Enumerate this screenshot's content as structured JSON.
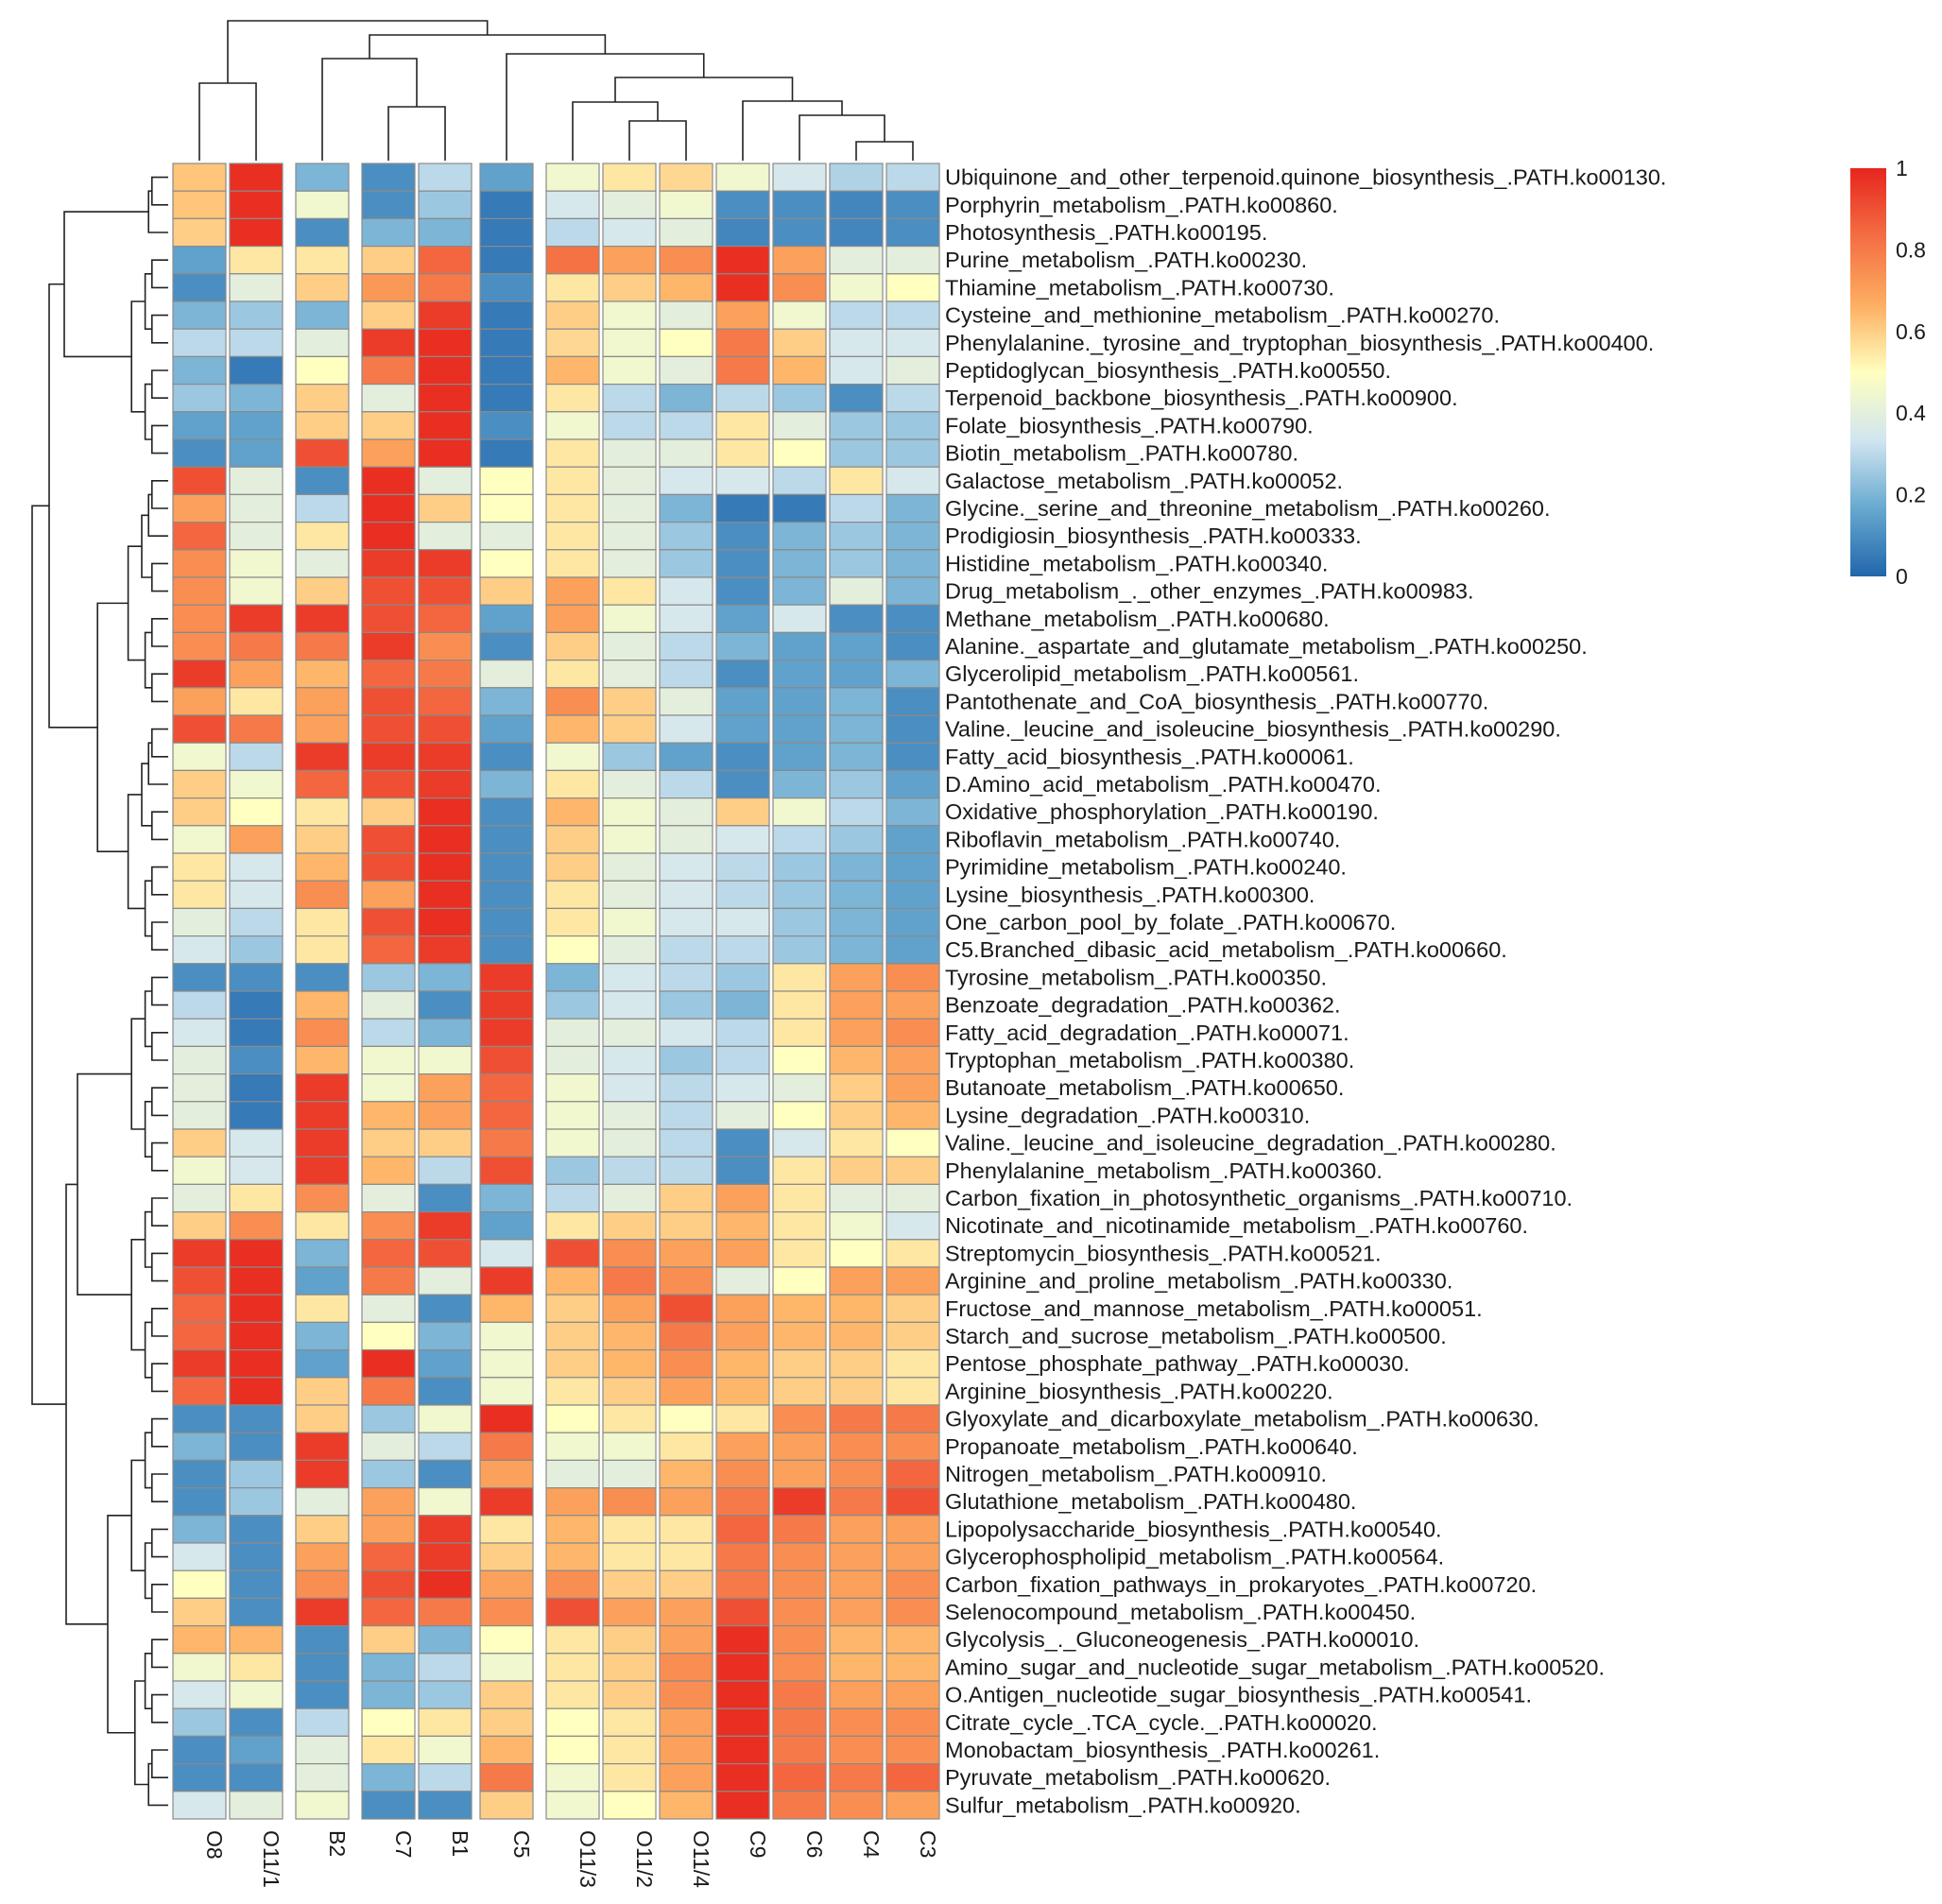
{
  "chart_data": {
    "type": "heatmap",
    "title": "",
    "columns": [
      "O8",
      "O11/1",
      "B2",
      "C7",
      "B1",
      "C5",
      "O11/3",
      "O11/2",
      "O11/4",
      "C9",
      "C6",
      "C4",
      "C3"
    ],
    "column_gaps_after": [
      "O11/1",
      "B2",
      "B1",
      "C5"
    ],
    "rows": [
      "Ubiquinone_and_other_terpenoid.quinone_biosynthesis_.PATH.ko00130.",
      "Porphyrin_metabolism_.PATH.ko00860.",
      "Photosynthesis_.PATH.ko00195.",
      "Purine_metabolism_.PATH.ko00230.",
      "Thiamine_metabolism_.PATH.ko00730.",
      "Cysteine_and_methionine_metabolism_.PATH.ko00270.",
      "Phenylalanine._tyrosine_and_tryptophan_biosynthesis_.PATH.ko00400.",
      "Peptidoglycan_biosynthesis_.PATH.ko00550.",
      "Terpenoid_backbone_biosynthesis_.PATH.ko00900.",
      "Folate_biosynthesis_.PATH.ko00790.",
      "Biotin_metabolism_.PATH.ko00780.",
      "Galactose_metabolism_.PATH.ko00052.",
      "Glycine._serine_and_threonine_metabolism_.PATH.ko00260.",
      "Prodigiosin_biosynthesis_.PATH.ko00333.",
      "Histidine_metabolism_.PATH.ko00340.",
      "Drug_metabolism_._other_enzymes_.PATH.ko00983.",
      "Methane_metabolism_.PATH.ko00680.",
      "Alanine._aspartate_and_glutamate_metabolism_.PATH.ko00250.",
      "Glycerolipid_metabolism_.PATH.ko00561.",
      "Pantothenate_and_CoA_biosynthesis_.PATH.ko00770.",
      "Valine._leucine_and_isoleucine_biosynthesis_.PATH.ko00290.",
      "Fatty_acid_biosynthesis_.PATH.ko00061.",
      "D.Amino_acid_metabolism_.PATH.ko00470.",
      "Oxidative_phosphorylation_.PATH.ko00190.",
      "Riboflavin_metabolism_.PATH.ko00740.",
      "Pyrimidine_metabolism_.PATH.ko00240.",
      "Lysine_biosynthesis_.PATH.ko00300.",
      "One_carbon_pool_by_folate_.PATH.ko00670.",
      "C5.Branched_dibasic_acid_metabolism_.PATH.ko00660.",
      "Tyrosine_metabolism_.PATH.ko00350.",
      "Benzoate_degradation_.PATH.ko00362.",
      "Fatty_acid_degradation_.PATH.ko00071.",
      "Tryptophan_metabolism_.PATH.ko00380.",
      "Butanoate_metabolism_.PATH.ko00650.",
      "Lysine_degradation_.PATH.ko00310.",
      "Valine._leucine_and_isoleucine_degradation_.PATH.ko00280.",
      "Phenylalanine_metabolism_.PATH.ko00360.",
      "Carbon_fixation_in_photosynthetic_organisms_.PATH.ko00710.",
      "Nicotinate_and_nicotinamide_metabolism_.PATH.ko00760.",
      "Streptomycin_biosynthesis_.PATH.ko00521.",
      "Arginine_and_proline_metabolism_.PATH.ko00330.",
      "Fructose_and_mannose_metabolism_.PATH.ko00051.",
      "Starch_and_sucrose_metabolism_.PATH.ko00500.",
      "Pentose_phosphate_pathway_.PATH.ko00030.",
      "Arginine_biosynthesis_.PATH.ko00220.",
      "Glyoxylate_and_dicarboxylate_metabolism_.PATH.ko00630.",
      "Propanoate_metabolism_.PATH.ko00640.",
      "Nitrogen_metabolism_.PATH.ko00910.",
      "Glutathione_metabolism_.PATH.ko00480.",
      "Lipopolysaccharide_biosynthesis_.PATH.ko00540.",
      "Glycerophospholipid_metabolism_.PATH.ko00564.",
      "Carbon_fixation_pathways_in_prokaryotes_.PATH.ko00720.",
      "Selenocompound_metabolism_.PATH.ko00450.",
      "Glycolysis_._Gluconeogenesis_.PATH.ko00010.",
      "Amino_sugar_and_nucleotide_sugar_metabolism_.PATH.ko00520.",
      "O.Antigen_nucleotide_sugar_biosynthesis_.PATH.ko00541.",
      "Citrate_cycle_.TCA_cycle._.PATH.ko00020.",
      "Monobactam_biosynthesis_.PATH.ko00261.",
      "Pyruvate_metabolism_.PATH.ko00620.",
      "Sulfur_metabolism_.PATH.ko00920."
    ],
    "values": [
      [
        0.62,
        0.98,
        0.2,
        0.1,
        0.3,
        0.15,
        0.45,
        0.55,
        0.58,
        0.45,
        0.35,
        0.28,
        0.3
      ],
      [
        0.62,
        0.98,
        0.45,
        0.1,
        0.25,
        0.05,
        0.35,
        0.4,
        0.45,
        0.1,
        0.1,
        0.08,
        0.1
      ],
      [
        0.6,
        0.98,
        0.1,
        0.2,
        0.2,
        0.05,
        0.3,
        0.35,
        0.4,
        0.08,
        0.1,
        0.08,
        0.1
      ],
      [
        0.15,
        0.55,
        0.55,
        0.6,
        0.85,
        0.05,
        0.82,
        0.7,
        0.75,
        0.98,
        0.7,
        0.4,
        0.4
      ],
      [
        0.1,
        0.4,
        0.6,
        0.72,
        0.8,
        0.1,
        0.55,
        0.6,
        0.65,
        0.98,
        0.75,
        0.45,
        0.5
      ],
      [
        0.2,
        0.25,
        0.2,
        0.6,
        0.95,
        0.05,
        0.6,
        0.45,
        0.4,
        0.7,
        0.45,
        0.3,
        0.3
      ],
      [
        0.3,
        0.3,
        0.4,
        0.95,
        0.98,
        0.05,
        0.58,
        0.45,
        0.5,
        0.8,
        0.6,
        0.35,
        0.35
      ],
      [
        0.2,
        0.05,
        0.5,
        0.8,
        0.98,
        0.05,
        0.65,
        0.45,
        0.4,
        0.8,
        0.65,
        0.35,
        0.4
      ],
      [
        0.25,
        0.2,
        0.6,
        0.4,
        0.98,
        0.05,
        0.55,
        0.3,
        0.2,
        0.3,
        0.25,
        0.1,
        0.3
      ],
      [
        0.15,
        0.15,
        0.6,
        0.6,
        0.98,
        0.1,
        0.45,
        0.3,
        0.3,
        0.55,
        0.4,
        0.25,
        0.25
      ],
      [
        0.1,
        0.15,
        0.9,
        0.7,
        0.98,
        0.05,
        0.55,
        0.4,
        0.4,
        0.55,
        0.5,
        0.25,
        0.25
      ],
      [
        0.9,
        0.4,
        0.1,
        0.98,
        0.4,
        0.5,
        0.55,
        0.4,
        0.35,
        0.35,
        0.3,
        0.55,
        0.35
      ],
      [
        0.7,
        0.4,
        0.3,
        0.98,
        0.6,
        0.5,
        0.55,
        0.4,
        0.2,
        0.05,
        0.05,
        0.3,
        0.2
      ],
      [
        0.85,
        0.4,
        0.55,
        0.98,
        0.4,
        0.4,
        0.55,
        0.4,
        0.25,
        0.1,
        0.2,
        0.25,
        0.2
      ],
      [
        0.75,
        0.45,
        0.4,
        0.95,
        0.95,
        0.5,
        0.55,
        0.4,
        0.25,
        0.1,
        0.2,
        0.25,
        0.2
      ],
      [
        0.75,
        0.45,
        0.6,
        0.9,
        0.9,
        0.6,
        0.7,
        0.55,
        0.35,
        0.1,
        0.2,
        0.4,
        0.2
      ],
      [
        0.75,
        0.95,
        0.95,
        0.9,
        0.85,
        0.15,
        0.7,
        0.45,
        0.35,
        0.15,
        0.35,
        0.1,
        0.1
      ],
      [
        0.75,
        0.8,
        0.8,
        0.95,
        0.75,
        0.1,
        0.6,
        0.4,
        0.3,
        0.2,
        0.15,
        0.15,
        0.1
      ],
      [
        0.95,
        0.7,
        0.65,
        0.85,
        0.8,
        0.4,
        0.55,
        0.4,
        0.3,
        0.1,
        0.15,
        0.15,
        0.2
      ],
      [
        0.7,
        0.55,
        0.7,
        0.9,
        0.85,
        0.2,
        0.75,
        0.6,
        0.4,
        0.15,
        0.15,
        0.2,
        0.1
      ],
      [
        0.9,
        0.8,
        0.7,
        0.9,
        0.9,
        0.15,
        0.65,
        0.6,
        0.35,
        0.15,
        0.15,
        0.2,
        0.1
      ],
      [
        0.45,
        0.3,
        0.95,
        0.95,
        0.95,
        0.1,
        0.45,
        0.25,
        0.15,
        0.1,
        0.15,
        0.2,
        0.1
      ],
      [
        0.6,
        0.45,
        0.85,
        0.9,
        0.95,
        0.2,
        0.55,
        0.4,
        0.3,
        0.1,
        0.2,
        0.25,
        0.15
      ],
      [
        0.6,
        0.5,
        0.55,
        0.6,
        0.98,
        0.1,
        0.65,
        0.45,
        0.4,
        0.6,
        0.45,
        0.3,
        0.2
      ],
      [
        0.45,
        0.7,
        0.6,
        0.9,
        0.98,
        0.1,
        0.6,
        0.45,
        0.4,
        0.35,
        0.3,
        0.25,
        0.15
      ],
      [
        0.55,
        0.35,
        0.65,
        0.9,
        0.98,
        0.1,
        0.6,
        0.4,
        0.35,
        0.3,
        0.25,
        0.2,
        0.15
      ],
      [
        0.55,
        0.35,
        0.75,
        0.7,
        0.98,
        0.1,
        0.55,
        0.4,
        0.35,
        0.3,
        0.25,
        0.2,
        0.15
      ],
      [
        0.4,
        0.3,
        0.55,
        0.9,
        0.98,
        0.1,
        0.55,
        0.45,
        0.35,
        0.35,
        0.25,
        0.2,
        0.15
      ],
      [
        0.35,
        0.25,
        0.55,
        0.85,
        0.95,
        0.1,
        0.5,
        0.4,
        0.3,
        0.3,
        0.25,
        0.2,
        0.15
      ],
      [
        0.1,
        0.1,
        0.1,
        0.25,
        0.2,
        0.95,
        0.2,
        0.35,
        0.3,
        0.25,
        0.55,
        0.7,
        0.75
      ],
      [
        0.3,
        0.05,
        0.65,
        0.4,
        0.1,
        0.95,
        0.25,
        0.35,
        0.25,
        0.2,
        0.55,
        0.7,
        0.7
      ],
      [
        0.35,
        0.05,
        0.75,
        0.3,
        0.2,
        0.95,
        0.4,
        0.4,
        0.35,
        0.3,
        0.55,
        0.7,
        0.75
      ],
      [
        0.4,
        0.1,
        0.65,
        0.45,
        0.45,
        0.9,
        0.4,
        0.35,
        0.25,
        0.3,
        0.5,
        0.65,
        0.7
      ],
      [
        0.4,
        0.05,
        0.95,
        0.45,
        0.7,
        0.85,
        0.45,
        0.35,
        0.3,
        0.35,
        0.4,
        0.6,
        0.7
      ],
      [
        0.4,
        0.05,
        0.95,
        0.65,
        0.7,
        0.85,
        0.45,
        0.4,
        0.3,
        0.4,
        0.5,
        0.6,
        0.65
      ],
      [
        0.6,
        0.35,
        0.95,
        0.6,
        0.6,
        0.8,
        0.45,
        0.4,
        0.3,
        0.1,
        0.35,
        0.55,
        0.5
      ],
      [
        0.45,
        0.35,
        0.95,
        0.65,
        0.3,
        0.9,
        0.25,
        0.3,
        0.3,
        0.1,
        0.55,
        0.6,
        0.6
      ],
      [
        0.4,
        0.55,
        0.75,
        0.4,
        0.1,
        0.2,
        0.3,
        0.4,
        0.6,
        0.7,
        0.55,
        0.4,
        0.4
      ],
      [
        0.6,
        0.75,
        0.55,
        0.75,
        0.95,
        0.15,
        0.55,
        0.6,
        0.6,
        0.65,
        0.55,
        0.45,
        0.35
      ],
      [
        0.95,
        0.98,
        0.2,
        0.85,
        0.9,
        0.35,
        0.9,
        0.75,
        0.7,
        0.7,
        0.55,
        0.5,
        0.55
      ],
      [
        0.9,
        0.98,
        0.15,
        0.8,
        0.4,
        0.95,
        0.65,
        0.8,
        0.75,
        0.4,
        0.5,
        0.7,
        0.7
      ],
      [
        0.85,
        0.98,
        0.55,
        0.4,
        0.1,
        0.65,
        0.6,
        0.7,
        0.9,
        0.7,
        0.65,
        0.65,
        0.6
      ],
      [
        0.85,
        0.98,
        0.2,
        0.5,
        0.2,
        0.45,
        0.6,
        0.65,
        0.8,
        0.7,
        0.65,
        0.65,
        0.6
      ],
      [
        0.95,
        0.98,
        0.15,
        0.98,
        0.15,
        0.45,
        0.6,
        0.65,
        0.75,
        0.65,
        0.6,
        0.6,
        0.55
      ],
      [
        0.85,
        0.98,
        0.6,
        0.8,
        0.1,
        0.45,
        0.55,
        0.6,
        0.7,
        0.65,
        0.6,
        0.6,
        0.55
      ],
      [
        0.1,
        0.1,
        0.6,
        0.25,
        0.45,
        0.98,
        0.5,
        0.55,
        0.5,
        0.55,
        0.75,
        0.8,
        0.8
      ],
      [
        0.2,
        0.1,
        0.95,
        0.4,
        0.3,
        0.8,
        0.45,
        0.45,
        0.55,
        0.7,
        0.7,
        0.75,
        0.75
      ],
      [
        0.1,
        0.25,
        0.95,
        0.25,
        0.1,
        0.7,
        0.4,
        0.4,
        0.65,
        0.75,
        0.7,
        0.75,
        0.85
      ],
      [
        0.1,
        0.25,
        0.4,
        0.7,
        0.45,
        0.95,
        0.7,
        0.75,
        0.7,
        0.8,
        0.95,
        0.8,
        0.9
      ],
      [
        0.2,
        0.1,
        0.6,
        0.7,
        0.95,
        0.55,
        0.65,
        0.55,
        0.55,
        0.85,
        0.8,
        0.7,
        0.7
      ],
      [
        0.35,
        0.1,
        0.7,
        0.85,
        0.95,
        0.6,
        0.65,
        0.55,
        0.55,
        0.8,
        0.75,
        0.7,
        0.7
      ],
      [
        0.5,
        0.1,
        0.75,
        0.9,
        0.98,
        0.7,
        0.75,
        0.6,
        0.6,
        0.8,
        0.75,
        0.7,
        0.75
      ],
      [
        0.6,
        0.1,
        0.95,
        0.85,
        0.8,
        0.75,
        0.9,
        0.7,
        0.7,
        0.9,
        0.75,
        0.7,
        0.75
      ],
      [
        0.65,
        0.65,
        0.1,
        0.6,
        0.2,
        0.5,
        0.55,
        0.6,
        0.7,
        0.98,
        0.75,
        0.65,
        0.65
      ],
      [
        0.45,
        0.55,
        0.1,
        0.2,
        0.3,
        0.45,
        0.55,
        0.6,
        0.75,
        0.98,
        0.75,
        0.65,
        0.65
      ],
      [
        0.35,
        0.45,
        0.1,
        0.2,
        0.25,
        0.6,
        0.55,
        0.6,
        0.75,
        0.98,
        0.8,
        0.7,
        0.7
      ],
      [
        0.25,
        0.1,
        0.3,
        0.5,
        0.55,
        0.6,
        0.5,
        0.55,
        0.7,
        0.98,
        0.8,
        0.75,
        0.75
      ],
      [
        0.1,
        0.15,
        0.4,
        0.55,
        0.45,
        0.65,
        0.5,
        0.55,
        0.7,
        0.98,
        0.8,
        0.75,
        0.75
      ],
      [
        0.1,
        0.1,
        0.4,
        0.2,
        0.3,
        0.8,
        0.45,
        0.55,
        0.7,
        0.98,
        0.85,
        0.8,
        0.85
      ],
      [
        0.35,
        0.4,
        0.45,
        0.1,
        0.1,
        0.6,
        0.45,
        0.5,
        0.65,
        0.98,
        0.8,
        0.75,
        0.7
      ]
    ],
    "color_scale": {
      "min": 0,
      "max": 1,
      "ticks": [
        "1",
        "0.8",
        "0.6",
        "0.4",
        "0.2",
        "0"
      ],
      "colors": [
        "#2166ac",
        "#67a9cf",
        "#d1e5f0",
        "#ffffbf",
        "#fdae61",
        "#f46d43",
        "#e7251e"
      ]
    },
    "legend_placement": "top-right",
    "dendrogram_columns": true,
    "dendrogram_rows": true
  }
}
